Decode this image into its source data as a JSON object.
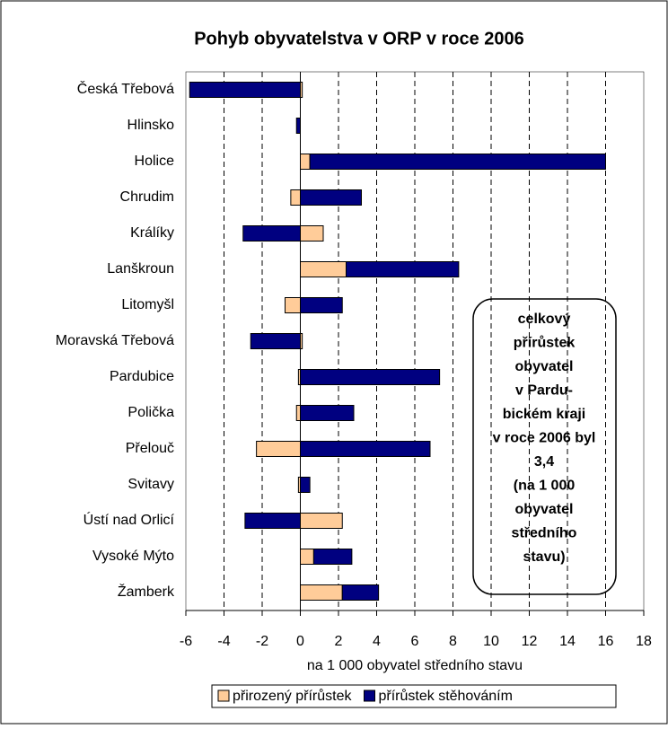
{
  "chart_data": {
    "type": "bar",
    "orientation": "horizontal",
    "stacked": true,
    "title": "Pohyb obyvatelstva v ORP v roce 2006",
    "x_label": "na 1 000 obyvatel středního stavu",
    "categories": [
      "Česká Třebová",
      "Hlinsko",
      "Holice",
      "Chrudim",
      "Králíky",
      "Lanškroun",
      "Litomyšl",
      "Moravská Třebová",
      "Pardubice",
      "Polička",
      "Přelouč",
      "Svitavy",
      "Ústí nad Orlicí",
      "Vysoké Mýto",
      "Žamberk"
    ],
    "series": [
      {
        "name": "přirozený přírůstek",
        "color": "#ffcc99",
        "values": [
          0.1,
          0,
          0.5,
          -0.5,
          1.2,
          2.4,
          -0.8,
          0.1,
          -0.1,
          -0.2,
          -2.3,
          -0.1,
          2.2,
          0.7,
          2.2
        ]
      },
      {
        "name": "přírůstek stěhováním",
        "color": "#000080",
        "values": [
          -5.8,
          -0.2,
          15.5,
          3.2,
          -3.0,
          5.9,
          2.2,
          -2.6,
          7.3,
          2.8,
          6.8,
          0.5,
          -2.9,
          2.0,
          1.9
        ]
      }
    ],
    "xlim": [
      -6,
      18
    ],
    "xticks": [
      -6,
      -4,
      -2,
      0,
      2,
      4,
      6,
      8,
      10,
      12,
      14,
      16,
      18
    ],
    "grid": true,
    "legend": "bottom",
    "annotation": [
      "celkový",
      "přírůstek",
      "obyvatel",
      "v Pardu-",
      "bickém kraji",
      "v roce 2006 byl",
      "3,4",
      "(na 1 000",
      "obyvatel",
      "středního",
      "stavu)"
    ]
  }
}
